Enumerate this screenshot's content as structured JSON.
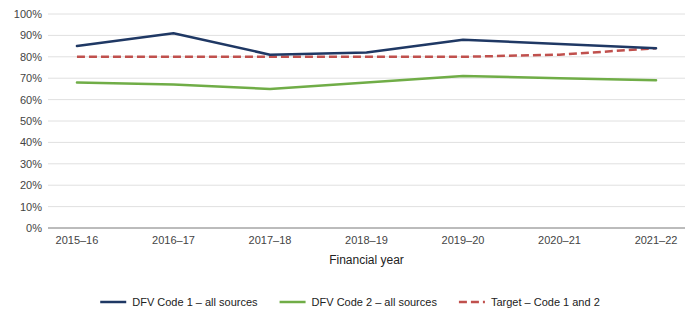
{
  "chart_data": {
    "type": "line",
    "x_label": "Financial year",
    "categories": [
      "2015–16",
      "2016–17",
      "2017–18",
      "2018–19",
      "2019–20",
      "2020–21",
      "2021–22"
    ],
    "series": [
      {
        "name": "DFV Code 1 – all sources",
        "color": "#1f3864",
        "line_style": "solid",
        "values": [
          0.85,
          0.91,
          0.81,
          0.82,
          0.88,
          0.86,
          0.84
        ]
      },
      {
        "name": "DFV Code 2 – all sources",
        "color": "#70ad47",
        "line_style": "solid",
        "values": [
          0.68,
          0.67,
          0.65,
          0.68,
          0.71,
          0.7,
          0.69
        ]
      },
      {
        "name": "Target – Code 1 and 2",
        "color": "#c0504d",
        "line_style": "dashed",
        "values": [
          0.8,
          0.8,
          0.8,
          0.8,
          0.8,
          0.81,
          0.84
        ]
      }
    ],
    "ylim": [
      0.0,
      1.0
    ],
    "yticks": [
      {
        "value": 0.0,
        "label": "0%"
      },
      {
        "value": 0.1,
        "label": "10%"
      },
      {
        "value": 0.2,
        "label": "20%"
      },
      {
        "value": 0.3,
        "label": "30%"
      },
      {
        "value": 0.4,
        "label": "40%"
      },
      {
        "value": 0.5,
        "label": "50%"
      },
      {
        "value": 0.6,
        "label": "60%"
      },
      {
        "value": 0.7,
        "label": "70%"
      },
      {
        "value": 0.8,
        "label": "80%"
      },
      {
        "value": 0.9,
        "label": "90%"
      },
      {
        "value": 1.0,
        "label": "100%"
      }
    ],
    "grid": true,
    "legend": "bottom"
  }
}
